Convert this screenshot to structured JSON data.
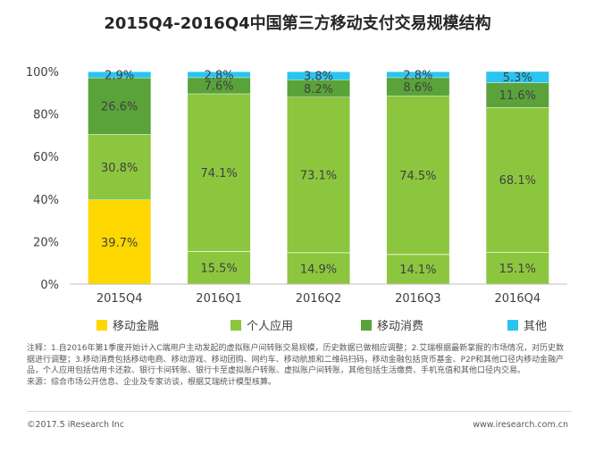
{
  "chart_data": {
    "type": "bar",
    "stacked": true,
    "title": "2015Q4-2016Q4中国第三方移动支付交易规模结构",
    "categories": [
      "2015Q4",
      "2016Q1",
      "2016Q2",
      "2016Q3",
      "2016Q4"
    ],
    "ylim": [
      0,
      100
    ],
    "yticks": [
      "0%",
      "20%",
      "40%",
      "60%",
      "80%",
      "100%"
    ],
    "grid": false,
    "legend_position": "bottom",
    "series": [
      {
        "name": "移动金融",
        "color": "#ffd700",
        "values": [
          39.7,
          0,
          0,
          0,
          0
        ],
        "labels": [
          "39.7%",
          "",
          "",
          "",
          ""
        ]
      },
      {
        "name": "个人应用",
        "color": "#8cc63f",
        "values": [
          30.8,
          74.1,
          73.1,
          74.5,
          68.1
        ],
        "labels": [
          "30.8%",
          "74.1%",
          "73.1%",
          "74.5%",
          "68.1%"
        ]
      },
      {
        "name": "移动消费",
        "color": "#5aa33a",
        "values": [
          26.6,
          7.6,
          8.2,
          8.6,
          11.6
        ],
        "labels": [
          "26.6%",
          "7.6%",
          "8.2%",
          "8.6%",
          "11.6%"
        ]
      },
      {
        "name": "其他",
        "color": "#29c4f0",
        "values": [
          2.9,
          2.8,
          3.8,
          2.8,
          5.3
        ],
        "labels": [
          "2.9%",
          "2.8%",
          "3.8%",
          "2.8%",
          "5.3%"
        ]
      }
    ],
    "bottom_values": [
      0,
      15.5,
      14.9,
      14.1,
      15.1
    ],
    "bottom_labels": [
      "",
      "15.5%",
      "14.9%",
      "14.1%",
      "15.1%"
    ]
  },
  "notes": "注释：1.自2016年第1季度开始计入C端用户主动发起的虚拟账户间转账交易规模，历史数据已做相应调整；2.艾瑞根据最新掌握的市场情况，对历史数据进行调整；3.移动消费包括移动电商、移动游戏、移动团购、网约车、移动航旅和二维码扫码，移动金融包括货币基金、P2P和其他口径内移动金融产品，个人应用包括信用卡还款、银行卡间转账、银行卡至虚拟账户转账、虚拟账户间转账，其他包括生活缴费、手机充值和其他口径内交易。",
  "source": "来源：综合市场公开信息、企业及专家访谈，根据艾瑞统计模型核算。",
  "footer": {
    "copyright": "©2017.5 iResearch Inc",
    "website": "www.iresearch.com.cn"
  }
}
